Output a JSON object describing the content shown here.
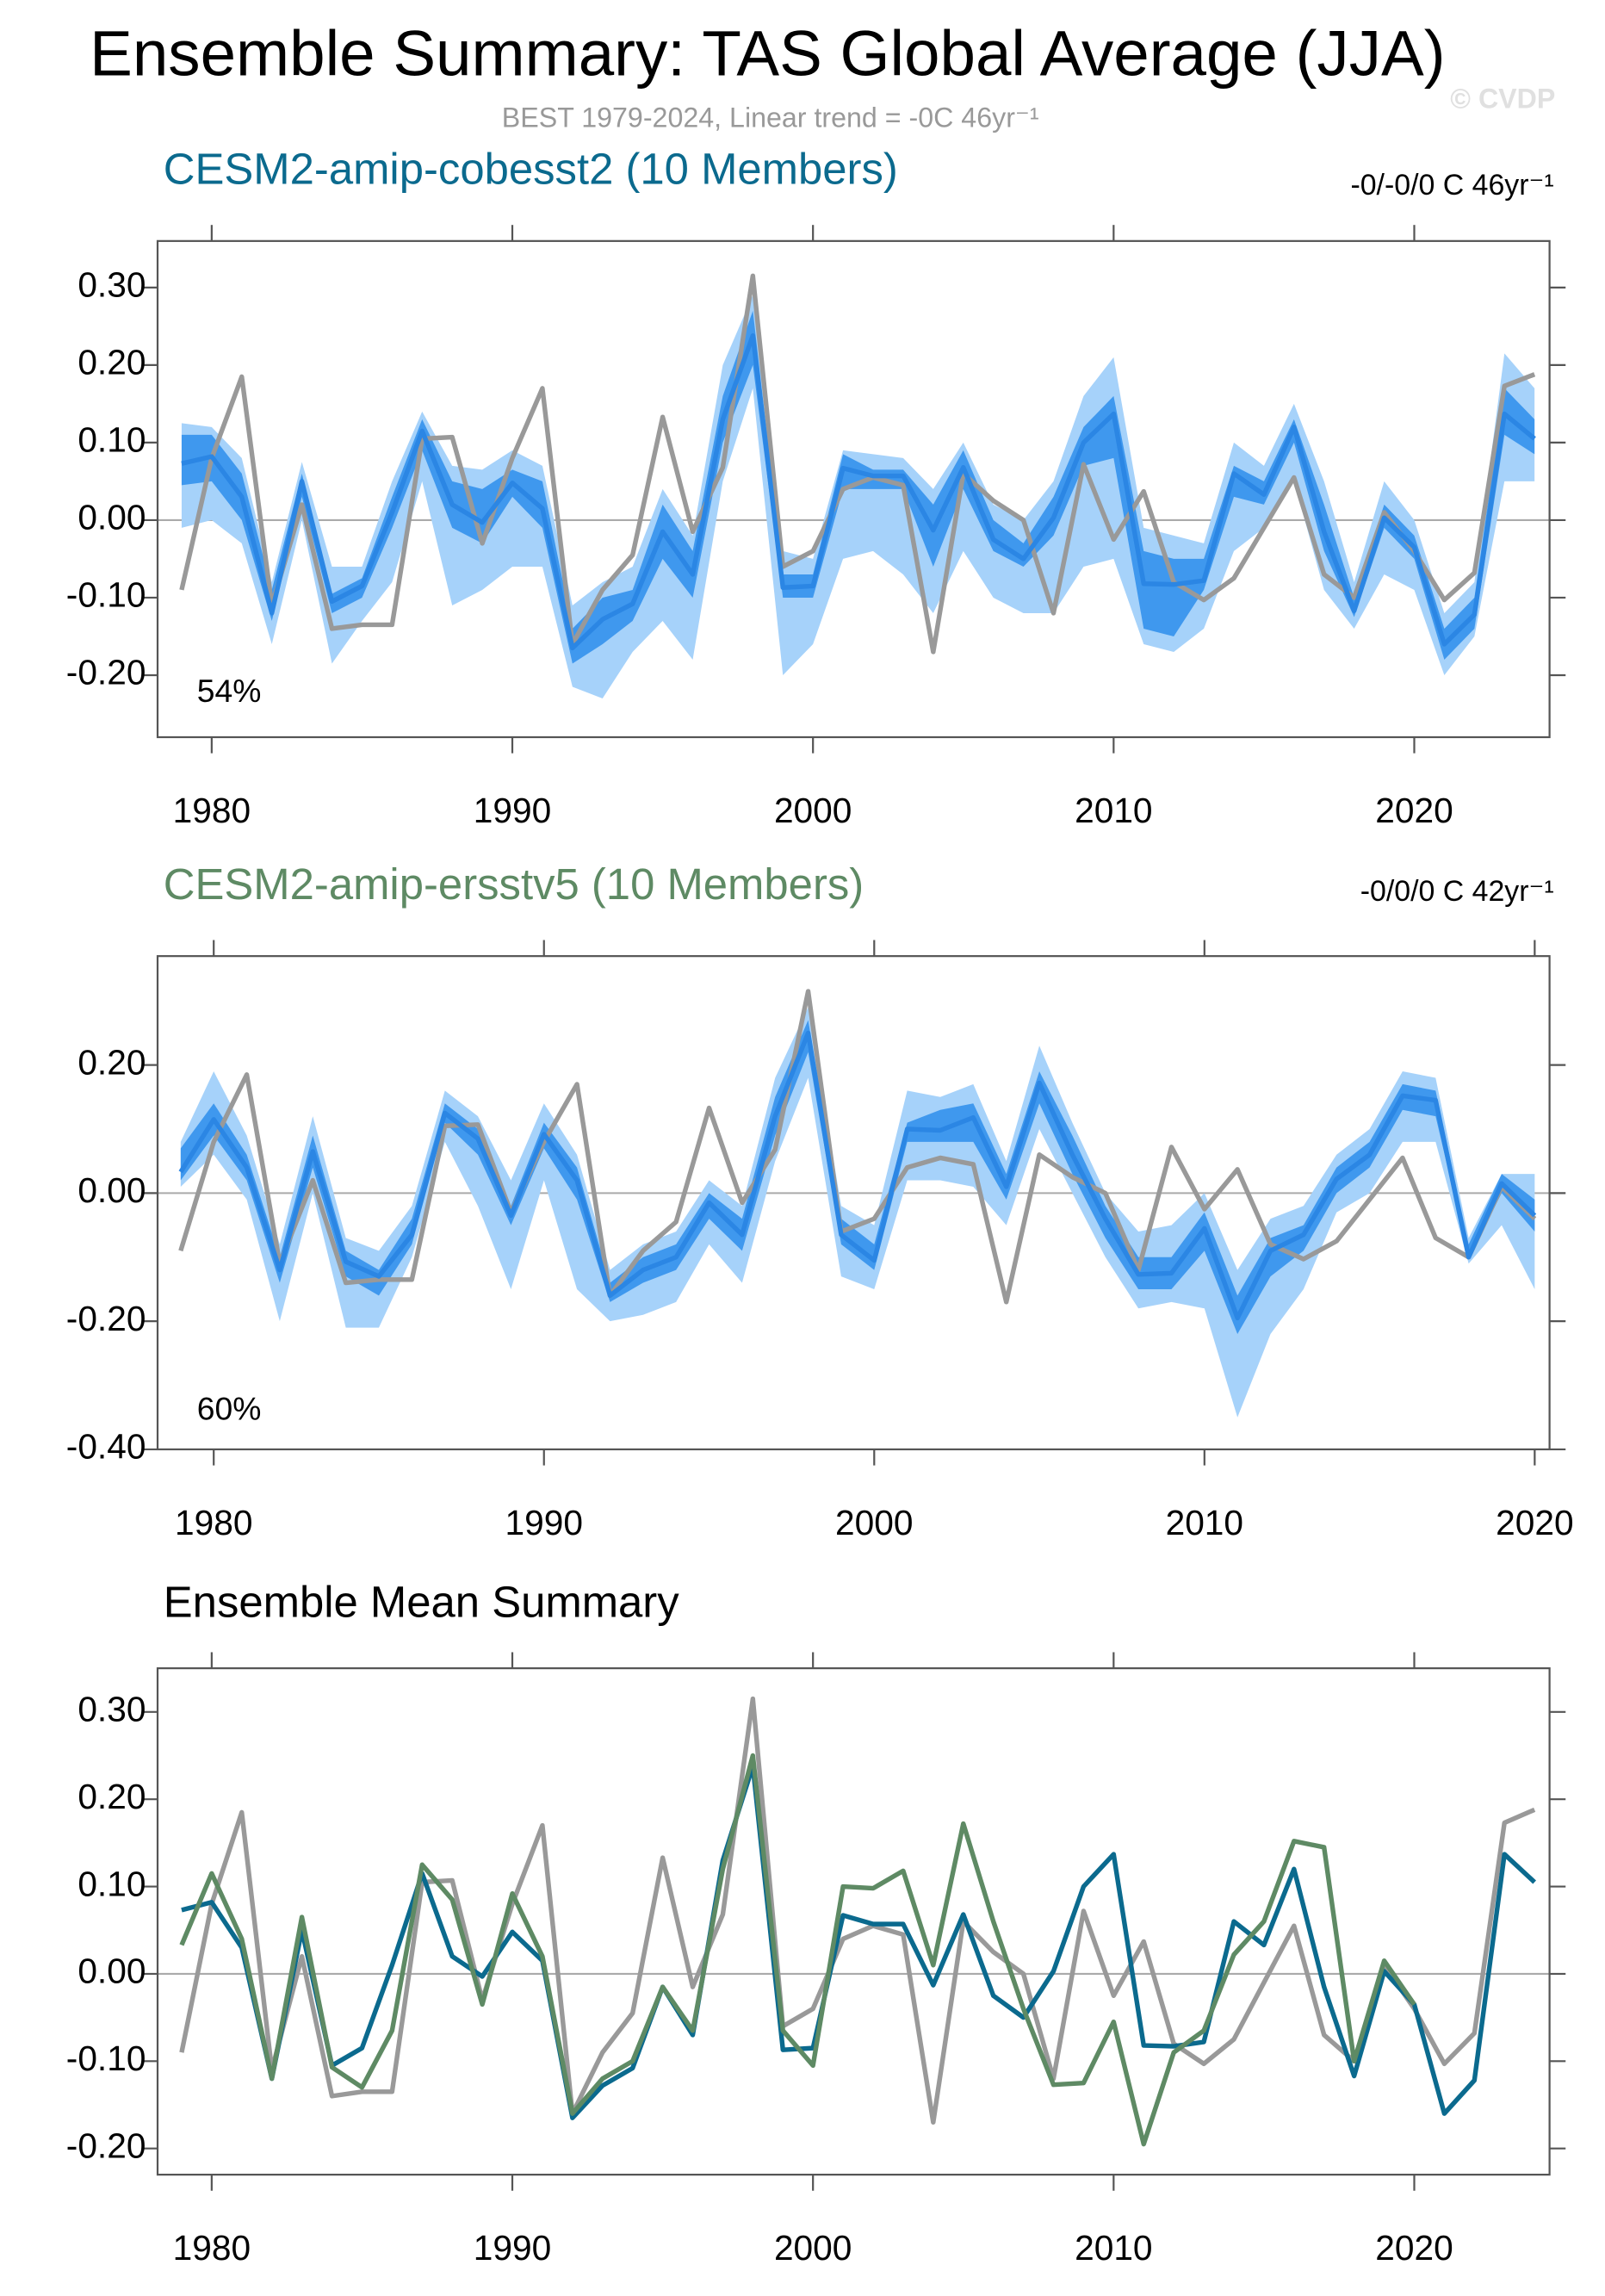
{
  "title": "Ensemble Summary: TAS Global Average (JJA)",
  "subtitle": "BEST 1979-2024, Linear trend = -0C 46yr⁻¹",
  "watermark": "© CVDP",
  "chart_data": [
    {
      "type": "band-line",
      "title": "CESM2-amip-cobesst2 (10 Members)",
      "title_color": "#0b6a8e",
      "annotation": "-0/-0/0 C 46yr⁻¹",
      "percent_label": "54%",
      "x": [
        1979,
        1980,
        1981,
        1982,
        1983,
        1984,
        1985,
        1986,
        1987,
        1988,
        1989,
        1990,
        1991,
        1992,
        1993,
        1994,
        1995,
        1996,
        1997,
        1998,
        1999,
        2000,
        2001,
        2002,
        2003,
        2004,
        2005,
        2006,
        2007,
        2008,
        2009,
        2010,
        2011,
        2012,
        2013,
        2014,
        2015,
        2016,
        2017,
        2018,
        2019,
        2020,
        2021,
        2022,
        2023,
        2024
      ],
      "xlim": [
        1978.2,
        2024.5
      ],
      "xticks": [
        1980,
        1990,
        2000,
        2010,
        2020
      ],
      "ylim": [
        -0.28,
        0.36
      ],
      "yticks": [
        {
          "value": -0.2,
          "label": "-0.20"
        },
        {
          "value": -0.1,
          "label": "-0.10"
        },
        {
          "value": 0,
          "label": "0.00"
        },
        {
          "value": 0.1,
          "label": "0.10"
        },
        {
          "value": 0.2,
          "label": "0.20"
        },
        {
          "value": 0.3,
          "label": "0.30"
        }
      ],
      "bands": [
        {
          "color": "#a6d2fa",
          "lower": [
            -0.01,
            0.0,
            -0.03,
            -0.16,
            0.0,
            -0.185,
            -0.13,
            -0.08,
            0.05,
            -0.11,
            -0.09,
            -0.06,
            -0.06,
            -0.215,
            -0.23,
            -0.17,
            -0.13,
            -0.18,
            0.05,
            0.17,
            -0.2,
            -0.16,
            -0.05,
            -0.04,
            -0.07,
            -0.12,
            -0.04,
            -0.1,
            -0.12,
            -0.12,
            -0.06,
            -0.05,
            -0.16,
            -0.17,
            -0.14,
            -0.04,
            -0.01,
            0.05,
            -0.09,
            -0.14,
            -0.07,
            -0.09,
            -0.2,
            -0.15,
            0.05,
            0.05
          ],
          "upper": [
            0.125,
            0.12,
            0.08,
            -0.08,
            0.075,
            -0.06,
            -0.06,
            0.05,
            0.14,
            0.07,
            0.065,
            0.09,
            0.07,
            -0.11,
            -0.08,
            -0.06,
            0.04,
            -0.02,
            0.2,
            0.29,
            -0.04,
            -0.05,
            0.09,
            0.085,
            0.08,
            0.04,
            0.1,
            0.02,
            0.0,
            0.05,
            0.16,
            0.21,
            -0.01,
            -0.02,
            -0.03,
            0.1,
            0.07,
            0.15,
            0.05,
            -0.08,
            0.05,
            0.0,
            -0.12,
            -0.08,
            0.215,
            0.17
          ]
        },
        {
          "color": "#3f98ee",
          "lower": [
            0.045,
            0.05,
            0.0,
            -0.13,
            0.03,
            -0.12,
            -0.1,
            -0.01,
            0.09,
            -0.01,
            -0.03,
            0.03,
            -0.01,
            -0.185,
            -0.16,
            -0.13,
            -0.05,
            -0.1,
            0.1,
            0.2,
            -0.1,
            -0.1,
            0.04,
            0.04,
            0.04,
            -0.06,
            0.04,
            -0.04,
            -0.06,
            -0.02,
            0.07,
            0.08,
            -0.14,
            -0.15,
            -0.09,
            0.03,
            0.02,
            0.1,
            -0.04,
            -0.125,
            -0.01,
            -0.05,
            -0.18,
            -0.14,
            0.11,
            0.085
          ],
          "upper": [
            0.11,
            0.11,
            0.06,
            -0.09,
            0.06,
            -0.095,
            -0.075,
            0.03,
            0.13,
            0.05,
            0.04,
            0.065,
            0.05,
            -0.14,
            -0.1,
            -0.09,
            0.02,
            -0.04,
            0.16,
            0.27,
            -0.07,
            -0.07,
            0.085,
            0.065,
            0.065,
            0.02,
            0.09,
            0.0,
            -0.03,
            0.03,
            0.12,
            0.16,
            -0.04,
            -0.05,
            -0.05,
            0.07,
            0.05,
            0.13,
            0.02,
            -0.1,
            0.02,
            -0.02,
            -0.14,
            -0.1,
            0.17,
            0.13
          ]
        }
      ],
      "series": [
        {
          "color": "#999999",
          "values": [
            -0.09,
            0.08,
            0.185,
            -0.11,
            0.02,
            -0.14,
            -0.135,
            -0.135,
            0.105,
            0.107,
            -0.03,
            0.08,
            0.17,
            -0.16,
            -0.09,
            -0.045,
            0.133,
            -0.015,
            0.068,
            0.315,
            -0.06,
            -0.04,
            0.04,
            0.055,
            0.045,
            -0.17,
            0.06,
            0.025,
            0.0,
            -0.12,
            0.072,
            -0.025,
            0.037,
            -0.08,
            -0.103,
            -0.075,
            -0.01,
            0.055,
            -0.07,
            -0.1,
            0.01,
            -0.04,
            -0.103,
            -0.068,
            0.173,
            0.188
          ]
        },
        {
          "color": "#2b86e4",
          "values": [
            0.073,
            0.082,
            0.03,
            -0.12,
            0.05,
            -0.105,
            -0.085,
            0.01,
            0.115,
            0.02,
            -0.003,
            0.048,
            0.015,
            -0.165,
            -0.128,
            -0.108,
            -0.015,
            -0.07,
            0.13,
            0.238,
            -0.087,
            -0.085,
            0.067,
            0.057,
            0.057,
            -0.013,
            0.068,
            -0.025,
            -0.05,
            0.003,
            0.1,
            0.137,
            -0.082,
            -0.083,
            -0.078,
            0.06,
            0.033,
            0.12,
            -0.015,
            -0.117,
            0.003,
            -0.035,
            -0.16,
            -0.122,
            0.137,
            0.105
          ]
        }
      ]
    },
    {
      "type": "band-line",
      "title": "CESM2-amip-ersstv5 (10 Members)",
      "title_color": "#5e8a64",
      "annotation": "-0/0/0 C 42yr⁻¹",
      "percent_label": "60%",
      "x": [
        1979,
        1980,
        1981,
        1982,
        1983,
        1984,
        1985,
        1986,
        1987,
        1988,
        1989,
        1990,
        1991,
        1992,
        1993,
        1994,
        1995,
        1996,
        1997,
        1998,
        1999,
        2000,
        2001,
        2002,
        2003,
        2004,
        2005,
        2006,
        2007,
        2008,
        2009,
        2010,
        2011,
        2012,
        2013,
        2014,
        2015,
        2016,
        2017,
        2018,
        2019,
        2020
      ],
      "xlim": [
        1978.3,
        2020.45
      ],
      "xticks": [
        1980,
        1990,
        2000,
        2010,
        2020
      ],
      "ylim": [
        -0.4,
        0.37
      ],
      "yticks": [
        {
          "value": -0.4,
          "label": "-0.40"
        },
        {
          "value": -0.2,
          "label": "-0.20"
        },
        {
          "value": 0,
          "label": "0.00"
        },
        {
          "value": 0.2,
          "label": "0.20"
        }
      ],
      "bands": [
        {
          "color": "#a6d2fa",
          "lower": [
            0.01,
            0.06,
            -0.01,
            -0.2,
            0.0,
            -0.21,
            -0.21,
            -0.1,
            0.08,
            -0.02,
            -0.15,
            0.02,
            -0.15,
            -0.2,
            -0.19,
            -0.17,
            -0.08,
            -0.14,
            0.05,
            0.18,
            -0.13,
            -0.15,
            0.02,
            0.02,
            0.01,
            -0.05,
            0.1,
            0.0,
            -0.1,
            -0.18,
            -0.17,
            -0.18,
            -0.35,
            -0.22,
            -0.15,
            -0.03,
            0.0,
            0.08,
            0.08,
            -0.11,
            -0.05,
            -0.15
          ],
          "upper": [
            0.08,
            0.19,
            0.09,
            -0.08,
            0.12,
            -0.07,
            -0.09,
            -0.02,
            0.16,
            0.12,
            0.02,
            0.14,
            0.06,
            -0.12,
            -0.08,
            -0.06,
            0.02,
            -0.02,
            0.18,
            0.29,
            -0.02,
            -0.05,
            0.16,
            0.15,
            0.17,
            0.05,
            0.23,
            0.11,
            0.0,
            -0.06,
            -0.05,
            0.0,
            -0.12,
            -0.04,
            -0.02,
            0.06,
            0.1,
            0.19,
            0.18,
            -0.07,
            0.03,
            0.03
          ]
        },
        {
          "color": "#3f98ee",
          "lower": [
            0.02,
            0.09,
            0.02,
            -0.14,
            0.04,
            -0.13,
            -0.16,
            -0.08,
            0.11,
            0.06,
            -0.05,
            0.07,
            -0.01,
            -0.17,
            -0.14,
            -0.12,
            -0.04,
            -0.09,
            0.09,
            0.22,
            -0.08,
            -0.12,
            0.08,
            0.08,
            0.08,
            -0.01,
            0.14,
            0.03,
            -0.07,
            -0.15,
            -0.15,
            -0.09,
            -0.22,
            -0.13,
            -0.09,
            0.0,
            0.04,
            0.13,
            0.12,
            -0.1,
            0.0,
            -0.06
          ],
          "upper": [
            0.07,
            0.14,
            0.06,
            -0.1,
            0.09,
            -0.09,
            -0.12,
            -0.04,
            0.14,
            0.1,
            -0.02,
            0.11,
            0.04,
            -0.14,
            -0.1,
            -0.08,
            0.0,
            -0.04,
            0.15,
            0.27,
            -0.04,
            -0.08,
            0.11,
            0.13,
            0.14,
            0.03,
            0.19,
            0.09,
            -0.02,
            -0.1,
            -0.1,
            -0.03,
            -0.16,
            -0.07,
            -0.05,
            0.04,
            0.08,
            0.17,
            0.16,
            -0.08,
            0.03,
            -0.01
          ]
        }
      ],
      "series": [
        {
          "color": "#999999",
          "values": [
            -0.09,
            0.08,
            0.185,
            -0.11,
            0.02,
            -0.14,
            -0.135,
            -0.135,
            0.105,
            0.107,
            -0.03,
            0.08,
            0.17,
            -0.16,
            -0.09,
            -0.045,
            0.133,
            -0.015,
            0.068,
            0.315,
            -0.06,
            -0.04,
            0.04,
            0.055,
            0.045,
            -0.17,
            0.06,
            0.025,
            0.0,
            -0.12,
            0.072,
            -0.025,
            0.037,
            -0.08,
            -0.103,
            -0.075,
            -0.01,
            0.055,
            -0.07,
            -0.1,
            0.01,
            -0.04
          ]
        },
        {
          "color": "#2b86e4",
          "values": [
            0.033,
            0.115,
            0.04,
            -0.12,
            0.065,
            -0.107,
            -0.13,
            -0.065,
            0.125,
            0.085,
            -0.035,
            0.092,
            0.02,
            -0.16,
            -0.12,
            -0.1,
            -0.015,
            -0.065,
            0.12,
            0.25,
            -0.065,
            -0.105,
            0.1,
            0.098,
            0.118,
            0.01,
            0.172,
            0.06,
            -0.04,
            -0.127,
            -0.125,
            -0.055,
            -0.195,
            -0.09,
            -0.065,
            0.022,
            0.06,
            0.152,
            0.145,
            -0.1,
            0.015,
            -0.035
          ]
        }
      ]
    },
    {
      "type": "line",
      "title": "Ensemble Mean Summary",
      "title_color": "#000000",
      "x": [
        1979,
        1980,
        1981,
        1982,
        1983,
        1984,
        1985,
        1986,
        1987,
        1988,
        1989,
        1990,
        1991,
        1992,
        1993,
        1994,
        1995,
        1996,
        1997,
        1998,
        1999,
        2000,
        2001,
        2002,
        2003,
        2004,
        2005,
        2006,
        2007,
        2008,
        2009,
        2010,
        2011,
        2012,
        2013,
        2014,
        2015,
        2016,
        2017,
        2018,
        2019,
        2020,
        2021,
        2022,
        2023,
        2024
      ],
      "xlim": [
        1978.2,
        2024.5
      ],
      "xticks": [
        1980,
        1990,
        2000,
        2010,
        2020
      ],
      "ylim": [
        -0.23,
        0.35
      ],
      "yticks": [
        {
          "value": -0.2,
          "label": "-0.20"
        },
        {
          "value": -0.1,
          "label": "-0.10"
        },
        {
          "value": 0,
          "label": "0.00"
        },
        {
          "value": 0.1,
          "label": "0.10"
        },
        {
          "value": 0.2,
          "label": "0.20"
        },
        {
          "value": 0.3,
          "label": "0.30"
        }
      ],
      "series": [
        {
          "color": "#999999",
          "values": [
            -0.09,
            0.08,
            0.185,
            -0.11,
            0.02,
            -0.14,
            -0.135,
            -0.135,
            0.105,
            0.107,
            -0.03,
            0.08,
            0.17,
            -0.16,
            -0.09,
            -0.045,
            0.133,
            -0.015,
            0.068,
            0.315,
            -0.06,
            -0.04,
            0.04,
            0.055,
            0.045,
            -0.17,
            0.06,
            0.025,
            0.0,
            -0.12,
            0.072,
            -0.025,
            0.037,
            -0.08,
            -0.103,
            -0.075,
            -0.01,
            0.055,
            -0.07,
            -0.1,
            0.01,
            -0.04,
            -0.103,
            -0.068,
            0.173,
            0.188
          ]
        },
        {
          "color": "#0b6a8e",
          "values": [
            0.073,
            0.082,
            0.03,
            -0.12,
            0.05,
            -0.105,
            -0.085,
            0.01,
            0.115,
            0.02,
            -0.003,
            0.048,
            0.015,
            -0.165,
            -0.128,
            -0.108,
            -0.015,
            -0.07,
            0.13,
            0.238,
            -0.087,
            -0.085,
            0.067,
            0.057,
            0.057,
            -0.013,
            0.068,
            -0.025,
            -0.05,
            0.003,
            0.1,
            0.137,
            -0.082,
            -0.083,
            -0.078,
            0.06,
            0.033,
            0.12,
            -0.015,
            -0.117,
            0.003,
            -0.035,
            -0.16,
            -0.122,
            0.137,
            0.105
          ]
        },
        {
          "color": "#5e8a64",
          "values": [
            0.033,
            0.115,
            0.04,
            -0.12,
            0.065,
            -0.107,
            -0.13,
            -0.065,
            0.125,
            0.085,
            -0.035,
            0.092,
            0.02,
            -0.16,
            -0.12,
            -0.1,
            -0.015,
            -0.065,
            0.12,
            0.25,
            -0.065,
            -0.105,
            0.1,
            0.098,
            0.118,
            0.01,
            0.172,
            0.06,
            -0.04,
            -0.127,
            -0.125,
            -0.055,
            -0.195,
            -0.09,
            -0.065,
            0.022,
            0.06,
            0.152,
            0.145,
            -0.1,
            0.015,
            -0.035,
            null,
            null,
            null,
            null
          ]
        }
      ]
    }
  ]
}
